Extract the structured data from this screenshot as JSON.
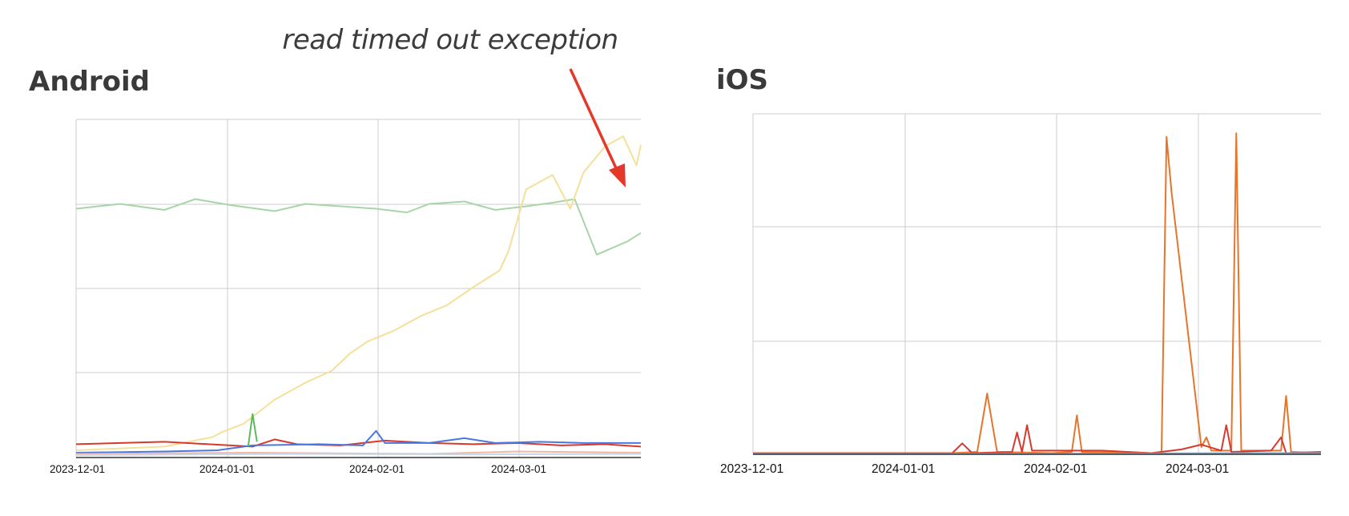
{
  "annotation": "read timed out exception",
  "chart_data": [
    {
      "type": "line",
      "title": "Android",
      "x_ticks": [
        "2023-12-01",
        "2024-01-01",
        "2024-02-01",
        "2024-03-01"
      ],
      "y_ticks_visible": false,
      "grid": true,
      "annotation": {
        "text": "read timed out exception",
        "target_series": "yellow",
        "arrow_color": "#e4382a"
      },
      "series": [
        {
          "color": "#a8d5a8",
          "points": [
            [
              0,
              20.6
            ],
            [
              10,
              21.0
            ],
            [
              20,
              20.5
            ],
            [
              27,
              21.4
            ],
            [
              35,
              20.9
            ],
            [
              45,
              20.4
            ],
            [
              52,
              21.0
            ],
            [
              60,
              20.8
            ],
            [
              68,
              20.6
            ],
            [
              75,
              20.3
            ],
            [
              80,
              21.0
            ],
            [
              88,
              21.2
            ],
            [
              95,
              20.5
            ],
            [
              102,
              20.8
            ],
            [
              108,
              21.1
            ],
            [
              113,
              21.4
            ],
            [
              118,
              16.8
            ],
            [
              125,
              17.9
            ],
            [
              128,
              18.6
            ]
          ]
        },
        {
          "color": "#f5e09a",
          "points": [
            [
              0,
              0.6
            ],
            [
              20,
              0.9
            ],
            [
              31,
              1.7
            ],
            [
              33,
              2.1
            ],
            [
              38,
              2.8
            ],
            [
              45,
              4.8
            ],
            [
              52,
              6.2
            ],
            [
              58,
              7.2
            ],
            [
              62,
              8.6
            ],
            [
              66,
              9.6
            ],
            [
              72,
              10.5
            ],
            [
              78,
              11.7
            ],
            [
              84,
              12.6
            ],
            [
              90,
              14.1
            ],
            [
              96,
              15.5
            ],
            [
              98,
              17.1
            ],
            [
              102,
              22.2
            ],
            [
              108,
              23.4
            ],
            [
              112,
              20.6
            ],
            [
              115,
              23.6
            ],
            [
              120,
              25.8
            ],
            [
              124,
              26.6
            ],
            [
              127,
              24.2
            ],
            [
              128,
              25.9
            ]
          ]
        },
        {
          "color": "#d63a2c",
          "points": [
            [
              0,
              1.1
            ],
            [
              10,
              1.2
            ],
            [
              20,
              1.3
            ],
            [
              30,
              1.1
            ],
            [
              40,
              0.9
            ],
            [
              45,
              1.5
            ],
            [
              50,
              1.1
            ],
            [
              60,
              1.0
            ],
            [
              70,
              1.4
            ],
            [
              80,
              1.2
            ],
            [
              90,
              1.1
            ],
            [
              100,
              1.2
            ],
            [
              110,
              1.0
            ],
            [
              120,
              1.1
            ],
            [
              128,
              0.9
            ]
          ]
        },
        {
          "color": "#4a78e0",
          "points": [
            [
              0,
              0.4
            ],
            [
              20,
              0.5
            ],
            [
              32,
              0.6
            ],
            [
              40,
              1.0
            ],
            [
              55,
              1.1
            ],
            [
              65,
              1.0
            ],
            [
              68,
              2.2
            ],
            [
              70,
              1.2
            ],
            [
              80,
              1.2
            ],
            [
              88,
              1.6
            ],
            [
              95,
              1.2
            ],
            [
              105,
              1.3
            ],
            [
              115,
              1.2
            ],
            [
              128,
              1.2
            ]
          ]
        },
        {
          "color": "#5fb760",
          "points": [
            [
              39,
              0.9
            ],
            [
              40,
              3.6
            ],
            [
              41,
              1.3
            ]
          ]
        },
        {
          "color": "#f0b8a8",
          "points": [
            [
              0,
              0.3
            ],
            [
              40,
              0.4
            ],
            [
              80,
              0.3
            ],
            [
              100,
              0.5
            ],
            [
              128,
              0.4
            ]
          ]
        },
        {
          "color": "#c9d7e8",
          "points": [
            [
              0,
              0.2
            ],
            [
              50,
              0.3
            ],
            [
              90,
              0.25
            ],
            [
              128,
              0.3
            ]
          ]
        }
      ]
    },
    {
      "type": "line",
      "title": "iOS",
      "x_ticks": [
        "2023-12-01",
        "2024-01-01",
        "2024-02-01",
        "2024-03-01"
      ],
      "y_ticks_visible": false,
      "grid": true,
      "series": [
        {
          "color": "#e8742a",
          "points": [
            [
              0,
              0.1
            ],
            [
              40,
              0.1
            ],
            [
              45,
              0.2
            ],
            [
              47,
              5.0
            ],
            [
              49,
              0.2
            ],
            [
              60,
              0.1
            ],
            [
              64,
              0.2
            ],
            [
              65,
              3.2
            ],
            [
              66,
              0.2
            ],
            [
              80,
              0.1
            ],
            [
              82,
              0.2
            ],
            [
              83,
              26.1
            ],
            [
              84,
              21.6
            ],
            [
              90,
              0.6
            ],
            [
              91,
              1.4
            ],
            [
              92,
              0.3
            ],
            [
              96,
              0.3
            ],
            [
              97,
              26.4
            ],
            [
              98,
              0.3
            ],
            [
              106,
              0.3
            ],
            [
              107,
              4.8
            ],
            [
              108,
              0.2
            ],
            [
              114,
              0.1
            ]
          ]
        },
        {
          "color": "#d63a2c",
          "points": [
            [
              0,
              0.1
            ],
            [
              30,
              0.1
            ],
            [
              40,
              0.1
            ],
            [
              42,
              0.9
            ],
            [
              44,
              0.1
            ],
            [
              52,
              0.2
            ],
            [
              53,
              1.8
            ],
            [
              54,
              0.2
            ],
            [
              55,
              2.4
            ],
            [
              56,
              0.3
            ],
            [
              70,
              0.3
            ],
            [
              80,
              0.1
            ],
            [
              86,
              0.4
            ],
            [
              90,
              0.8
            ],
            [
              94,
              0.3
            ],
            [
              95,
              2.4
            ],
            [
              96,
              0.2
            ],
            [
              104,
              0.3
            ],
            [
              106,
              1.4
            ],
            [
              107,
              0.1
            ],
            [
              114,
              0.2
            ]
          ]
        },
        {
          "color": "#6aa9d8",
          "points": [
            [
              0,
              0.05
            ],
            [
              60,
              0.05
            ],
            [
              100,
              0.1
            ],
            [
              114,
              0.1
            ]
          ]
        }
      ]
    }
  ]
}
